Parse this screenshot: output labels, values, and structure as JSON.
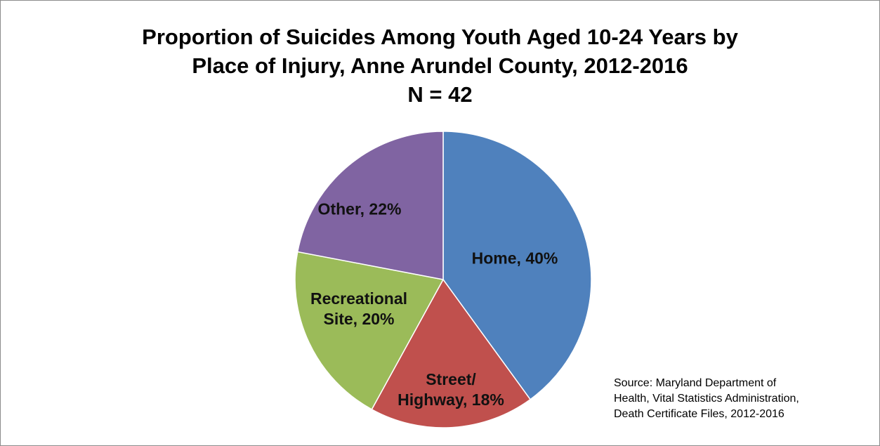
{
  "chart_data": {
    "type": "pie",
    "title_lines": [
      "Proportion of Suicides Among Youth Aged 10-24 Years by",
      "Place of Injury, Anne Arundel County, 2012-2016",
      "N = 42"
    ],
    "slices": [
      {
        "label_lines": [
          "Home, 40%"
        ],
        "category": "Home",
        "value": 40,
        "color": "#4f81bd"
      },
      {
        "label_lines": [
          "Street/",
          "Highway, 18%"
        ],
        "category": "Street/Highway",
        "value": 18,
        "color": "#c0504d"
      },
      {
        "label_lines": [
          "Recreational",
          "Site, 20%"
        ],
        "category": "Recreational Site",
        "value": 20,
        "color": "#9bbb59"
      },
      {
        "label_lines": [
          "Other, 22%"
        ],
        "category": "Other",
        "value": 22,
        "color": "#8064a2"
      }
    ],
    "start_angle": "12 o'clock",
    "direction": "clockwise",
    "legend": "none"
  },
  "source_lines": [
    "Source: Maryland Department of",
    "Health, Vital Statistics Administration,",
    "Death Certificate Files, 2012-2016"
  ]
}
